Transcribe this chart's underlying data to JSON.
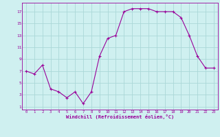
{
  "x": [
    0,
    1,
    2,
    3,
    4,
    5,
    6,
    7,
    8,
    9,
    10,
    11,
    12,
    13,
    14,
    15,
    16,
    17,
    18,
    19,
    20,
    21,
    22,
    23
  ],
  "y": [
    7,
    6.5,
    8,
    4,
    3.5,
    2.5,
    3.5,
    1.5,
    3.5,
    9.5,
    12.5,
    13,
    17,
    17.5,
    17.5,
    17.5,
    17,
    17,
    17,
    16,
    13,
    9.5,
    7.5,
    7.5
  ],
  "line_color": "#990099",
  "marker_color": "#990099",
  "bg_color": "#cff0f0",
  "grid_color": "#aad8d8",
  "axis_color": "#990099",
  "tick_color": "#990099",
  "xlabel": "Windchill (Refroidissement éolien,°C)",
  "xlabel_color": "#990099",
  "yticks": [
    1,
    3,
    5,
    7,
    9,
    11,
    13,
    15,
    17
  ],
  "xticks": [
    0,
    1,
    2,
    3,
    4,
    5,
    6,
    7,
    8,
    9,
    10,
    11,
    12,
    13,
    14,
    15,
    16,
    17,
    18,
    19,
    20,
    21,
    22,
    23
  ],
  "ylim": [
    0.5,
    18.5
  ],
  "xlim": [
    -0.5,
    23.5
  ]
}
